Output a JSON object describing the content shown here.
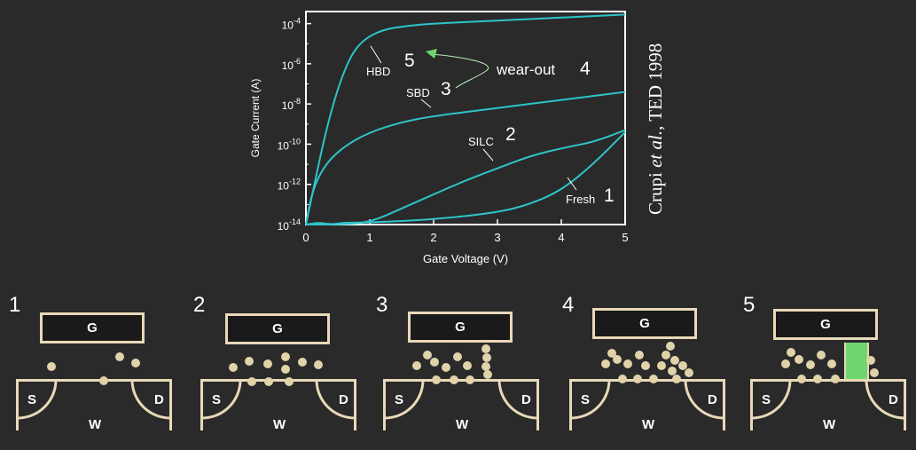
{
  "chart_data": {
    "type": "line",
    "xlabel": "Gate Voltage (V)",
    "ylabel": "Gate Current (A)",
    "xlim": [
      0,
      5
    ],
    "ylim_log10": [
      -14,
      -3.4
    ],
    "y_scale": "log",
    "x_ticks": [
      "0",
      "1",
      "2",
      "3",
      "4",
      "5"
    ],
    "y_ticks": [
      {
        "base": "10",
        "exp": "-4"
      },
      {
        "base": "10",
        "exp": "-6"
      },
      {
        "base": "10",
        "exp": "-8"
      },
      {
        "base": "10",
        "exp": "-10"
      },
      {
        "base": "10",
        "exp": "-12"
      },
      {
        "base": "10",
        "exp": "-14"
      }
    ],
    "line_color": "#2ec4c9",
    "series": [
      {
        "name": "HBD",
        "number": "5",
        "points": [
          [
            0,
            -14
          ],
          [
            0.1,
            -12.5
          ],
          [
            0.3,
            -9.5
          ],
          [
            0.5,
            -7.2
          ],
          [
            0.7,
            -5.6
          ],
          [
            0.9,
            -4.8
          ],
          [
            1.2,
            -4.3
          ],
          [
            1.6,
            -4.1
          ],
          [
            2,
            -4.0
          ],
          [
            3,
            -3.85
          ],
          [
            4,
            -3.7
          ],
          [
            5,
            -3.55
          ]
        ]
      },
      {
        "name": "SBD",
        "number": "3",
        "points": [
          [
            0,
            -14
          ],
          [
            0.1,
            -12.3
          ],
          [
            0.3,
            -11
          ],
          [
            0.6,
            -10.1
          ],
          [
            1,
            -9.4
          ],
          [
            1.5,
            -8.9
          ],
          [
            2,
            -8.6
          ],
          [
            3,
            -8.2
          ],
          [
            4,
            -7.8
          ],
          [
            5,
            -7.4
          ]
        ]
      },
      {
        "name": "SILC",
        "number": "2",
        "points": [
          [
            0,
            -14
          ],
          [
            0.5,
            -14
          ],
          [
            1,
            -13.9
          ],
          [
            1.5,
            -13.2
          ],
          [
            2,
            -12.5
          ],
          [
            2.5,
            -11.8
          ],
          [
            3,
            -11.2
          ],
          [
            3.5,
            -10.6
          ],
          [
            4,
            -10.2
          ],
          [
            4.5,
            -9.9
          ],
          [
            5,
            -9.3
          ]
        ]
      },
      {
        "name": "Fresh",
        "number": "1",
        "points": [
          [
            0,
            -14
          ],
          [
            0.2,
            -13.9
          ],
          [
            0.4,
            -14
          ],
          [
            0.6,
            -13.9
          ],
          [
            1,
            -13.9
          ],
          [
            2,
            -13.75
          ],
          [
            3,
            -13.4
          ],
          [
            3.5,
            -13.0
          ],
          [
            4,
            -12.3
          ],
          [
            4.5,
            -11.0
          ],
          [
            5,
            -9.4
          ]
        ]
      }
    ],
    "annotations": [
      {
        "text": "wear-out",
        "number": "4"
      }
    ]
  },
  "citation": {
    "author": "Crupi ",
    "etal": "et al.",
    "source": ", TED 1998"
  },
  "diagram": {
    "gate_label": "G",
    "source_label": "S",
    "drain_label": "D",
    "well_label": "W",
    "bead_color": "#e0d3aa",
    "outline_color": "#e8d9b8",
    "path_color": "#6fd66f",
    "stages": [
      {
        "number": "1"
      },
      {
        "number": "2"
      },
      {
        "number": "3"
      },
      {
        "number": "4"
      },
      {
        "number": "5"
      }
    ]
  }
}
